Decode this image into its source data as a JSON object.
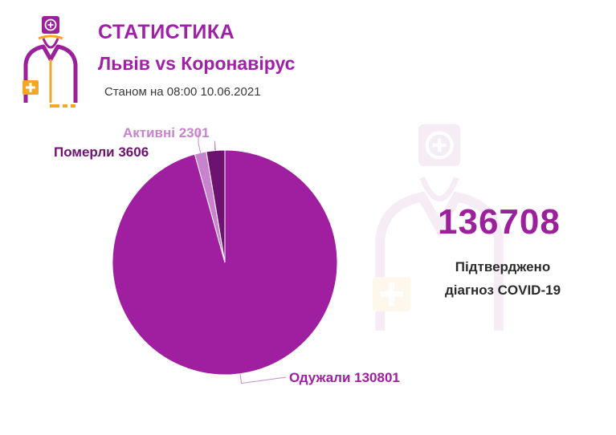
{
  "header": {
    "title": "СТАТИСТИКА",
    "subtitle": "Львів vs Коронавірус",
    "date_text": "Станом на 08:00 10.06.2021"
  },
  "summary": {
    "total": "136708",
    "caption_line1": "Підтверджено",
    "caption_line2": "діагноз COVID-19"
  },
  "colors": {
    "brand_purple": "#9c1f9c",
    "orange_accent": "#f5a623",
    "title_text": "#a020a8",
    "recovered": "#a01ea0",
    "deaths": "#6d1270",
    "active": "#c883cf"
  },
  "icons": [
    "doctor-logo-icon",
    "doctor-watermark-icon"
  ],
  "chart_data": {
    "type": "pie",
    "title": "",
    "slices": [
      {
        "label": "Одужали 130801",
        "value": 130801,
        "color": "#a01ea0"
      },
      {
        "label": "Активні 2301",
        "value": 2301,
        "color": "#c883cf"
      },
      {
        "label": "Померли 3606",
        "value": 3606,
        "color": "#6d1270"
      }
    ]
  }
}
